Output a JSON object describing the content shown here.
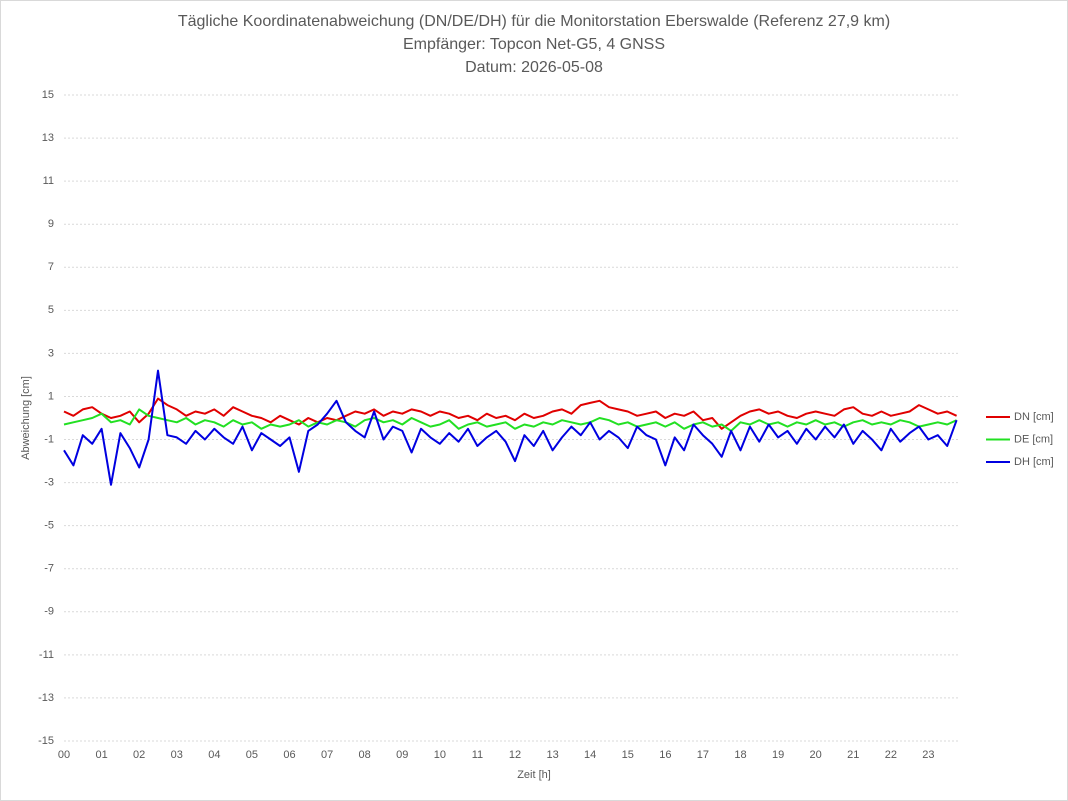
{
  "chart_data": {
    "type": "line",
    "title": [
      "Tägliche Koordinatenabweichung (DN/DE/DH) für die Monitorstation Eberswalde (Referenz 27,9 km)",
      "Empfänger: Topcon Net-G5, 4 GNSS",
      "Datum: 2026-05-08"
    ],
    "xlabel": "Zeit [h]",
    "ylabel": "Abweichung [cm]",
    "xlim": [
      0,
      24
    ],
    "ylim": [
      -15,
      15
    ],
    "xticks": [
      {
        "value": 0,
        "label": "00"
      },
      {
        "value": 1,
        "label": "01"
      },
      {
        "value": 2,
        "label": "02"
      },
      {
        "value": 3,
        "label": "03"
      },
      {
        "value": 4,
        "label": "04"
      },
      {
        "value": 5,
        "label": "05"
      },
      {
        "value": 6,
        "label": "06"
      },
      {
        "value": 7,
        "label": "07"
      },
      {
        "value": 8,
        "label": "08"
      },
      {
        "value": 9,
        "label": "09"
      },
      10,
      11,
      12,
      13,
      14,
      15,
      16,
      17,
      18,
      19,
      20,
      21,
      22,
      23
    ],
    "yticks": [
      15,
      13,
      11,
      9,
      7,
      5,
      3,
      1,
      -1,
      -3,
      -5,
      -7,
      -9,
      -11,
      -13,
      -15
    ],
    "grid": true,
    "legend": "right",
    "x": [
      0,
      0.25,
      0.5,
      0.75,
      1,
      1.25,
      1.5,
      1.75,
      2,
      2.25,
      2.5,
      2.75,
      3,
      3.25,
      3.5,
      3.75,
      4,
      4.25,
      4.5,
      4.75,
      5,
      5.25,
      5.5,
      5.75,
      6,
      6.25,
      6.5,
      6.75,
      7,
      7.25,
      7.5,
      7.75,
      8,
      8.25,
      8.5,
      8.75,
      9,
      9.25,
      9.5,
      9.75,
      10,
      10.25,
      10.5,
      10.75,
      11,
      11.25,
      11.5,
      11.75,
      12,
      12.25,
      12.5,
      12.75,
      13,
      13.25,
      13.5,
      13.75,
      14,
      14.25,
      14.5,
      14.75,
      15,
      15.25,
      15.5,
      15.75,
      16,
      16.25,
      16.5,
      16.75,
      17,
      17.25,
      17.5,
      17.75,
      18,
      18.25,
      18.5,
      18.75,
      19,
      19.25,
      19.5,
      19.75,
      20,
      20.25,
      20.5,
      20.75,
      21,
      21.25,
      21.5,
      21.75,
      22,
      22.25,
      22.5,
      22.75,
      23,
      23.25,
      23.5,
      23.75
    ],
    "series": [
      {
        "name": "DN [cm]",
        "color": "#e00000",
        "values": [
          0.3,
          0.1,
          0.4,
          0.5,
          0.2,
          0.0,
          0.1,
          0.3,
          -0.2,
          0.2,
          0.9,
          0.6,
          0.4,
          0.1,
          0.3,
          0.2,
          0.4,
          0.1,
          0.5,
          0.3,
          0.1,
          0.0,
          -0.2,
          0.1,
          -0.1,
          -0.3,
          0.0,
          -0.2,
          0.0,
          -0.1,
          0.1,
          0.3,
          0.2,
          0.4,
          0.1,
          0.3,
          0.2,
          0.4,
          0.3,
          0.1,
          0.3,
          0.2,
          0.0,
          0.1,
          -0.1,
          0.2,
          0.0,
          0.1,
          -0.1,
          0.2,
          0.0,
          0.1,
          0.3,
          0.4,
          0.2,
          0.6,
          0.7,
          0.8,
          0.5,
          0.4,
          0.3,
          0.1,
          0.2,
          0.3,
          0.0,
          0.2,
          0.1,
          0.3,
          -0.1,
          0.0,
          -0.5,
          -0.2,
          0.1,
          0.3,
          0.4,
          0.2,
          0.3,
          0.1,
          0.0,
          0.2,
          0.3,
          0.2,
          0.1,
          0.4,
          0.5,
          0.2,
          0.1,
          0.3,
          0.1,
          0.2,
          0.3,
          0.6,
          0.4,
          0.2,
          0.3,
          0.1
        ]
      },
      {
        "name": "DE [cm]",
        "color": "#22e022",
        "values": [
          -0.3,
          -0.2,
          -0.1,
          0.0,
          0.2,
          -0.2,
          -0.1,
          -0.3,
          0.4,
          0.1,
          0.0,
          -0.1,
          -0.2,
          0.0,
          -0.3,
          -0.1,
          -0.2,
          -0.4,
          -0.1,
          -0.3,
          -0.2,
          -0.5,
          -0.3,
          -0.4,
          -0.3,
          -0.1,
          -0.4,
          -0.2,
          -0.3,
          -0.1,
          -0.2,
          -0.4,
          -0.1,
          0.0,
          -0.2,
          -0.1,
          -0.3,
          0.0,
          -0.2,
          -0.4,
          -0.3,
          -0.1,
          -0.5,
          -0.3,
          -0.2,
          -0.4,
          -0.3,
          -0.2,
          -0.5,
          -0.3,
          -0.4,
          -0.2,
          -0.3,
          -0.1,
          -0.2,
          -0.3,
          -0.2,
          0.0,
          -0.1,
          -0.3,
          -0.2,
          -0.4,
          -0.3,
          -0.2,
          -0.4,
          -0.2,
          -0.5,
          -0.3,
          -0.2,
          -0.4,
          -0.3,
          -0.6,
          -0.2,
          -0.3,
          -0.1,
          -0.3,
          -0.2,
          -0.4,
          -0.2,
          -0.3,
          -0.1,
          -0.3,
          -0.2,
          -0.4,
          -0.2,
          -0.1,
          -0.3,
          -0.2,
          -0.3,
          -0.1,
          -0.2,
          -0.4,
          -0.3,
          -0.2,
          -0.3,
          -0.1
        ]
      },
      {
        "name": "DH [cm]",
        "color": "#0000e0",
        "values": [
          -1.5,
          -2.2,
          -0.8,
          -1.2,
          -0.5,
          -3.1,
          -0.7,
          -1.4,
          -2.3,
          -1.0,
          2.2,
          -0.8,
          -0.9,
          -1.2,
          -0.6,
          -1.0,
          -0.5,
          -0.9,
          -1.2,
          -0.4,
          -1.5,
          -0.7,
          -1.0,
          -1.3,
          -0.9,
          -2.5,
          -0.6,
          -0.3,
          0.2,
          0.8,
          -0.2,
          -0.6,
          -0.9,
          0.3,
          -1.0,
          -0.4,
          -0.6,
          -1.6,
          -0.5,
          -0.9,
          -1.2,
          -0.7,
          -1.1,
          -0.5,
          -1.3,
          -0.9,
          -0.6,
          -1.1,
          -2.0,
          -0.8,
          -1.3,
          -0.6,
          -1.5,
          -0.9,
          -0.4,
          -0.8,
          -0.2,
          -1.0,
          -0.6,
          -0.9,
          -1.4,
          -0.4,
          -0.8,
          -1.0,
          -2.2,
          -0.9,
          -1.5,
          -0.3,
          -0.8,
          -1.2,
          -1.8,
          -0.6,
          -1.5,
          -0.4,
          -1.1,
          -0.3,
          -0.9,
          -0.6,
          -1.2,
          -0.5,
          -1.0,
          -0.4,
          -0.9,
          -0.3,
          -1.2,
          -0.6,
          -1.0,
          -1.5,
          -0.5,
          -1.1,
          -0.7,
          -0.4,
          -1.0,
          -0.8,
          -1.3,
          -0.1
        ]
      }
    ]
  }
}
